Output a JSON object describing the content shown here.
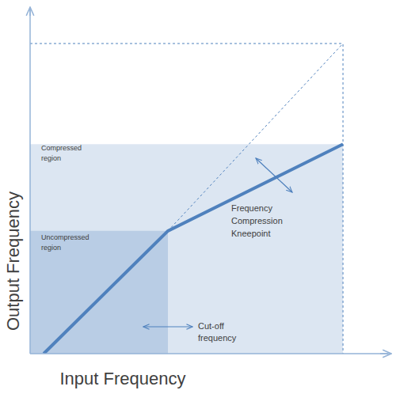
{
  "chart_data": {
    "type": "line",
    "x_label": "Input Frequency",
    "y_label": "Output Frequency",
    "xlim": [
      0,
      100
    ],
    "ylim": [
      0,
      100
    ],
    "tick_labels": false,
    "grid": false,
    "series": [
      {
        "type": "line",
        "line_style": "solid",
        "color": "#4f81bd",
        "x": [
          3.8,
          38.5,
          87.4
        ],
        "values": [
          0,
          35.5,
          60.6
        ]
      },
      {
        "type": "line",
        "line_style": "dashed",
        "color": "#4f81bd",
        "x": [
          38.5,
          87.4
        ],
        "values": [
          35.5,
          89.7
        ]
      },
      {
        "type": "line",
        "line_style": "dashed",
        "color": "#4f81bd",
        "x": [
          0,
          87.4,
          87.4
        ],
        "values": [
          89.7,
          89.7,
          0
        ]
      }
    ],
    "regions": [
      {
        "x": [
          0,
          87.4
        ],
        "y": [
          0,
          60.6
        ],
        "color": "#dce6f2"
      },
      {
        "x": [
          0,
          38.5
        ],
        "y": [
          0,
          35.5
        ],
        "color": "#b9cde5"
      }
    ],
    "annotations": [
      {
        "text": [
          "Compressed",
          "region"
        ]
      },
      {
        "text": [
          "Uncompressed",
          "region"
        ]
      },
      {
        "text": [
          "Frequency",
          "Compression",
          "Kneepoint"
        ]
      },
      {
        "text": [
          "Cut-off",
          "frequency"
        ]
      }
    ]
  }
}
